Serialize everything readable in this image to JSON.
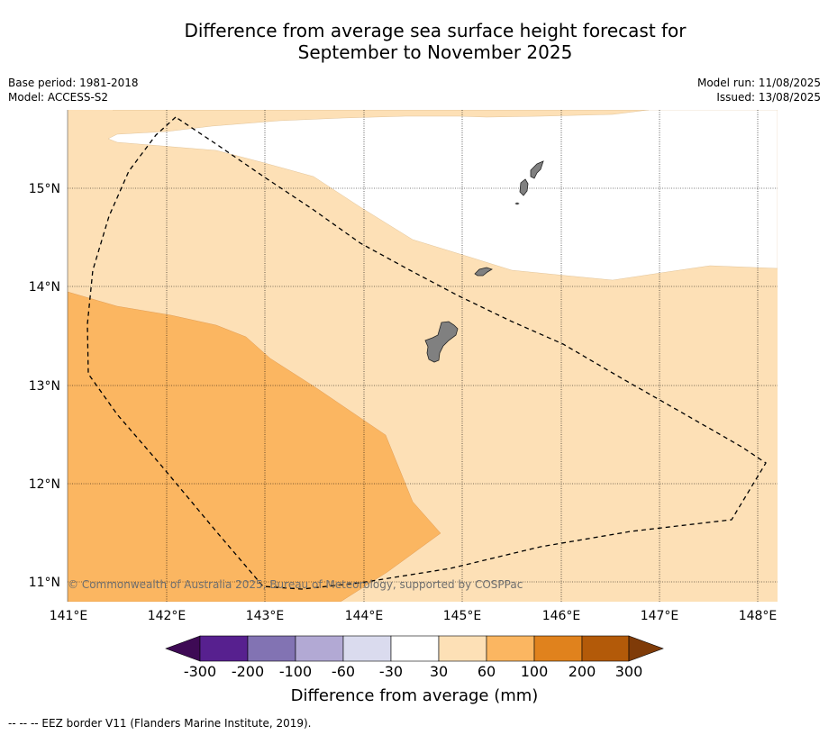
{
  "header": {
    "title_line1": "Difference from average sea surface height forecast for",
    "title_line2": "September to November 2025",
    "base_period": "Base period: 1981-2018",
    "model": "Model: ACCESS-S2",
    "model_run": "Model run: 11/08/2025",
    "issued": "Issued: 13/08/2025"
  },
  "map": {
    "lon_ticks": [
      "141°E",
      "142°E",
      "143°E",
      "144°E",
      "145°E",
      "146°E",
      "147°E",
      "148°E"
    ],
    "lat_ticks": [
      "15°N",
      "14°N",
      "13°N",
      "12°N",
      "11°N"
    ],
    "copyright": "© Commonwealth of Australia 2025, Bureau of Meteorology, supported by COSPPac",
    "colors": {
      "band_30_60": "#fde0b6",
      "band_60_100": "#fbb661",
      "below_30": "#ffffff",
      "land": "#808080"
    }
  },
  "colorbar": {
    "title": "Difference from average (mm)",
    "labels": [
      "-300",
      "-200",
      "-100",
      "-60",
      "-30",
      "30",
      "60",
      "100",
      "200",
      "300"
    ],
    "colors": [
      "#3e0a55",
      "#57208f",
      "#8273b3",
      "#b2a9d4",
      "#dadbee",
      "#ffffff",
      "#fde0b6",
      "#fbb661",
      "#e0821d",
      "#b35a09",
      "#7f3b08"
    ]
  },
  "footnote": "--  --  -- EEZ border V11 (Flanders Marine Institute, 2019)."
}
